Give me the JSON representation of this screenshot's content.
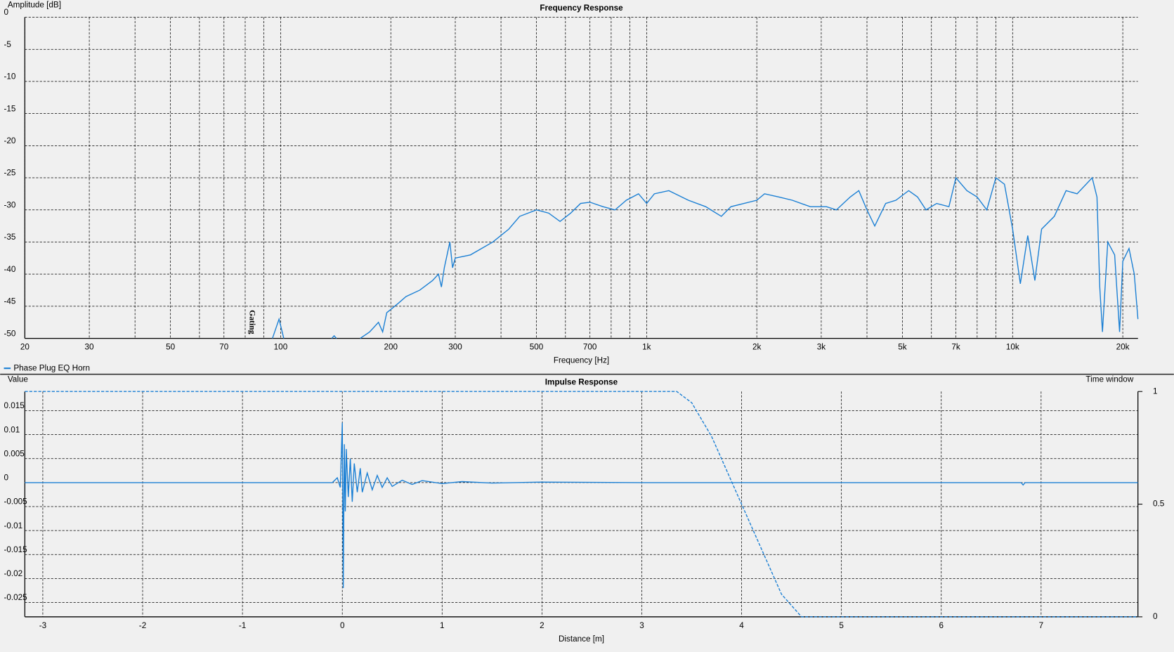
{
  "chart_data": [
    {
      "type": "line",
      "title": "Frequency Response",
      "xlabel": "Frequency [Hz]",
      "ylabel": "Amplitude [dB]",
      "xscale": "log",
      "xlim": [
        20,
        22000
      ],
      "ylim": [
        -50,
        0
      ],
      "xticks": [
        20,
        30,
        50,
        70,
        100,
        200,
        300,
        500,
        700,
        {
          "value": 1000,
          "label": "1k"
        },
        {
          "value": 2000,
          "label": "2k"
        },
        {
          "value": 3000,
          "label": "3k"
        },
        {
          "value": 5000,
          "label": "5k"
        },
        {
          "value": 7000,
          "label": "7k"
        },
        {
          "value": 10000,
          "label": "10k"
        },
        {
          "value": 20000,
          "label": "20k"
        }
      ],
      "xminor": [
        40,
        60,
        80,
        90,
        400,
        600,
        800,
        900,
        4000,
        6000,
        8000,
        9000
      ],
      "yticks": [
        0,
        -5,
        -10,
        -15,
        -20,
        -25,
        -30,
        -35,
        -40,
        -45,
        -50
      ],
      "grid": true,
      "legend": "bottom-left",
      "annotations": [
        "Gating"
      ],
      "series": [
        {
          "name": "Phase Plug EQ Horn",
          "color": "#1a7fd4",
          "x": [
            95,
            99,
            102,
            130,
            138,
            140,
            142,
            150,
            165,
            175,
            185,
            190,
            195,
            200,
            210,
            220,
            240,
            260,
            270,
            275,
            280,
            290,
            295,
            300,
            330,
            380,
            420,
            450,
            500,
            540,
            580,
            620,
            660,
            700,
            760,
            820,
            880,
            950,
            1000,
            1050,
            1150,
            1300,
            1450,
            1600,
            1700,
            2000,
            2100,
            2300,
            2500,
            2800,
            3100,
            3300,
            3600,
            3800,
            4000,
            4200,
            4500,
            4800,
            5200,
            5500,
            5800,
            6200,
            6700,
            7000,
            7500,
            8000,
            8500,
            9000,
            9500,
            10000,
            10500,
            11000,
            11500,
            12000,
            13000,
            14000,
            15000,
            16500,
            17000,
            17300,
            17600,
            18200,
            19000,
            19600,
            20000,
            20800,
            21500,
            22000
          ],
          "values": [
            -50,
            -47,
            -50,
            null,
            -50,
            -49.6,
            -50,
            null,
            -50,
            -49,
            -47.5,
            -49,
            -46,
            -45.5,
            -44.5,
            -43.5,
            -42.5,
            -41,
            -40,
            -42,
            -39,
            -35,
            -39,
            -37.5,
            -37,
            -35,
            -33,
            -31,
            -30,
            -30.5,
            -31.8,
            -30.5,
            -29,
            -28.8,
            -29.5,
            -30,
            -28.5,
            -27.5,
            -29,
            -27.5,
            -27,
            -28.5,
            -29.5,
            -31,
            -29.5,
            -28.5,
            -27.5,
            -28,
            -28.5,
            -29.5,
            -29.5,
            -30,
            -28,
            -27,
            -30,
            -32.5,
            -29,
            -28.5,
            -27,
            -28,
            -30,
            -29,
            -29.5,
            -25,
            -27,
            -28,
            -30,
            -25,
            -26,
            -33,
            -41.5,
            -34,
            -41,
            -33,
            -31,
            -27,
            -27.5,
            -25,
            -28,
            -42,
            -49,
            -35,
            -37,
            -49,
            -38,
            -36,
            -40,
            -47
          ]
        }
      ]
    },
    {
      "type": "line",
      "title": "Impulse Response",
      "xlabel": "Distance [m]",
      "ylabel": "Value",
      "y2label": "Time window",
      "xlim": [
        -3.18,
        7.97
      ],
      "ylim": [
        -0.028,
        0.019
      ],
      "y2lim": [
        0,
        1
      ],
      "xticks": [
        -3,
        -2,
        -1,
        0,
        1,
        2,
        3,
        4,
        5,
        6,
        7
      ],
      "yticks": [
        0.015,
        0.01,
        0.005,
        0,
        -0.005,
        -0.01,
        -0.015,
        -0.02,
        -0.025
      ],
      "y2ticks": [
        1,
        0.5,
        0
      ],
      "grid": true,
      "series": [
        {
          "color": "#1a7fd4",
          "x": [
            -3.18,
            -0.1,
            -0.05,
            -0.02,
            0,
            0.01,
            0.02,
            0.03,
            0.04,
            0.06,
            0.08,
            0.1,
            0.12,
            0.15,
            0.18,
            0.2,
            0.25,
            0.3,
            0.35,
            0.4,
            0.45,
            0.5,
            0.6,
            0.7,
            0.8,
            1.0,
            1.2,
            1.5,
            2.0,
            3.0,
            6.8,
            6.82,
            6.84,
            7.97
          ],
          "values": [
            0,
            0,
            0.001,
            -0.001,
            0.0125,
            -0.022,
            0.008,
            -0.006,
            0.007,
            -0.003,
            0.005,
            -0.004,
            0.004,
            -0.002,
            0.003,
            -0.002,
            0.002,
            -0.0015,
            0.0015,
            -0.001,
            0.001,
            -0.0008,
            0.0005,
            -0.0004,
            0.0004,
            -0.0002,
            0.0002,
            -0.0001,
            0.0001,
            0,
            0,
            -0.0005,
            0,
            0
          ]
        },
        {
          "color": "#1a7fd4",
          "axis": "y2",
          "style": "dashed",
          "x": [
            -3.18,
            0,
            3.35,
            3.5,
            3.7,
            3.9,
            4.0,
            4.2,
            4.4,
            4.6,
            7.97
          ],
          "values": [
            1,
            1,
            1,
            0.95,
            0.8,
            0.6,
            0.5,
            0.3,
            0.1,
            0,
            0
          ]
        }
      ]
    }
  ]
}
